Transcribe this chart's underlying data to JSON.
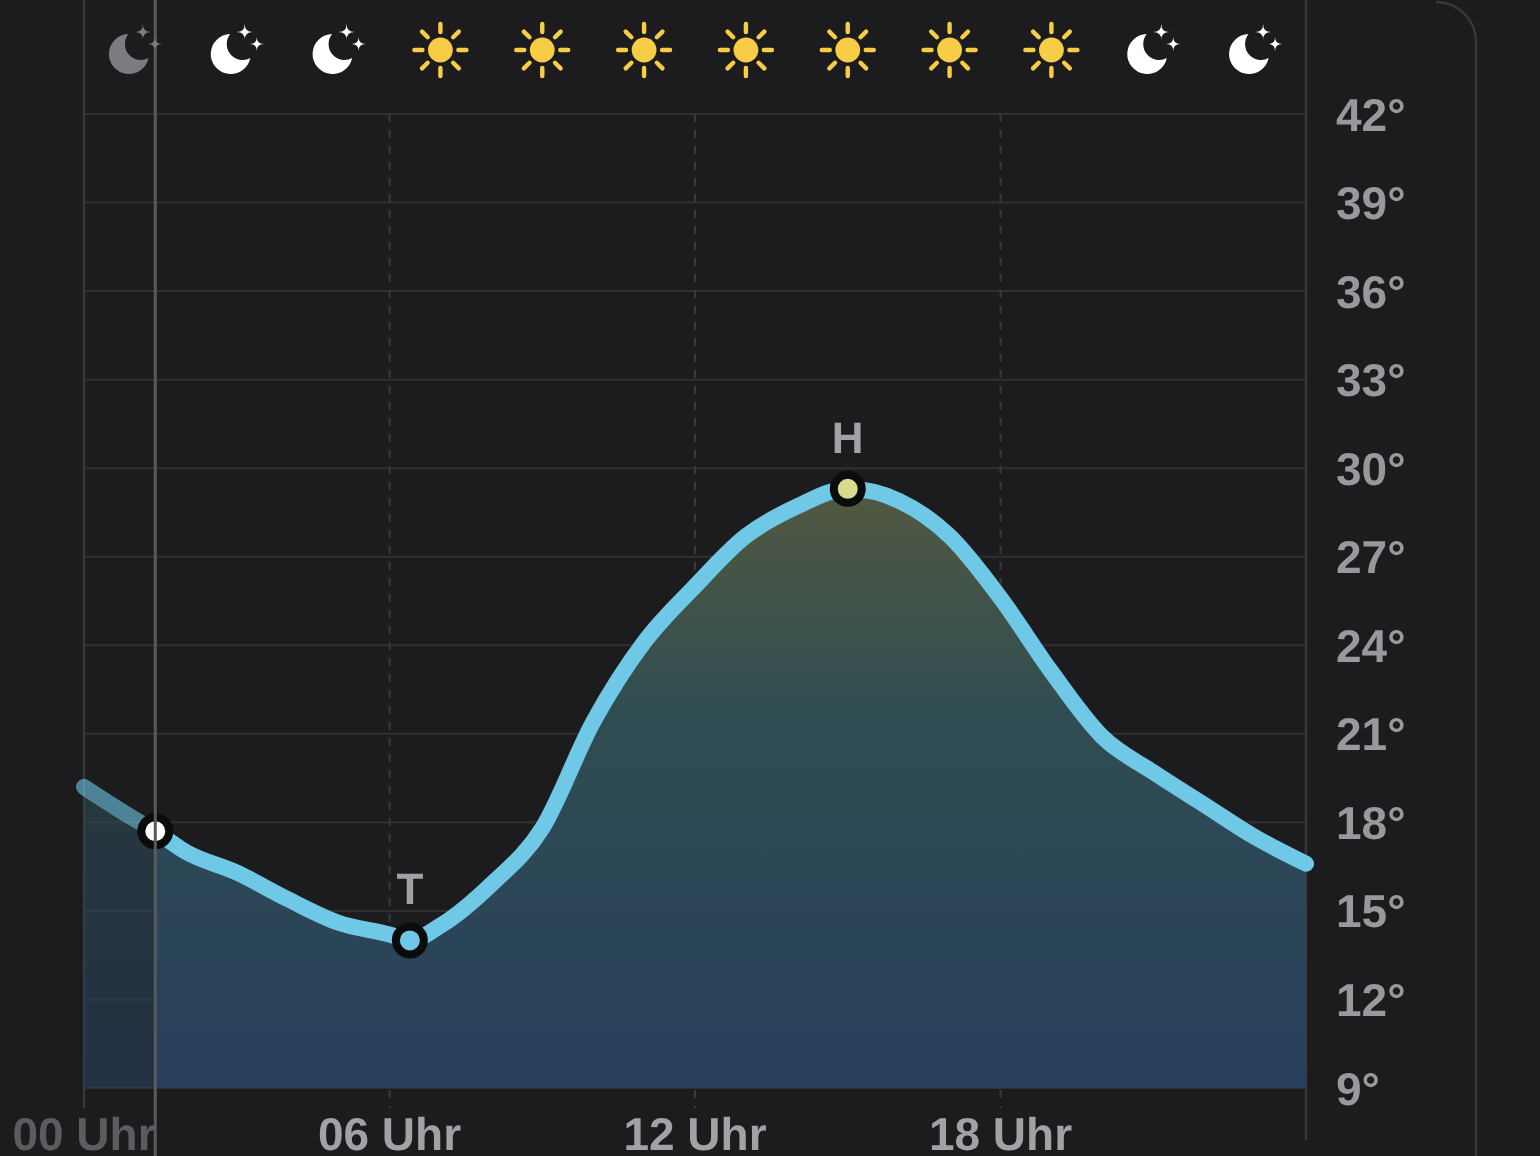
{
  "chart_data": {
    "type": "area",
    "series": [
      {
        "color": "#6ec8e6",
        "x": [
          0,
          1,
          1.4,
          2,
          3,
          4,
          5,
          6,
          6.4,
          7,
          8,
          9,
          10,
          11,
          12,
          13,
          14,
          15,
          16,
          17,
          18,
          19,
          20,
          21,
          22,
          23,
          24
        ],
        "values": [
          19.2,
          18.1,
          17.7,
          17.0,
          16.3,
          15.4,
          14.6,
          14.2,
          14.0,
          14.5,
          15.9,
          17.8,
          21.4,
          24.1,
          26.0,
          27.7,
          28.7,
          29.3,
          28.9,
          27.7,
          25.6,
          23.1,
          20.9,
          19.7,
          18.6,
          17.5,
          16.6
        ]
      },
      {
        "type": "scatter",
        "marker": "circle",
        "x": [
          1.4,
          6.4,
          15
        ],
        "values": [
          17.7,
          14.0,
          29.3
        ],
        "colors": [
          "#ffffff",
          "#6ec8e6",
          "#d6dc8a"
        ]
      }
    ],
    "xlim": [
      0,
      24
    ],
    "xticks": [
      {
        "value": 0,
        "label": "00 Uhr"
      },
      {
        "value": 6,
        "label": "06 Uhr"
      },
      {
        "value": 12,
        "label": "12 Uhr"
      },
      {
        "value": 18,
        "label": "18 Uhr"
      }
    ],
    "ylim": [
      9,
      42
    ],
    "yticks": [
      {
        "value": 9,
        "label": "9°"
      },
      {
        "value": 12,
        "label": "12°"
      },
      {
        "value": 15,
        "label": "15°"
      },
      {
        "value": 18,
        "label": "18°"
      },
      {
        "value": 21,
        "label": "21°"
      },
      {
        "value": 24,
        "label": "24°"
      },
      {
        "value": 27,
        "label": "27°"
      },
      {
        "value": 30,
        "label": "30°"
      },
      {
        "value": 33,
        "label": "33°"
      },
      {
        "value": 36,
        "label": "36°"
      },
      {
        "value": 39,
        "label": "39°"
      },
      {
        "value": 42,
        "label": "42°"
      }
    ],
    "grid": true,
    "ref_lines": [
      {
        "axis": "x",
        "value": 1.4
      }
    ],
    "annotations": [
      {
        "text": "T",
        "x": 6.4,
        "y": 14.0
      },
      {
        "text": "H",
        "x": 15,
        "y": 29.3
      }
    ]
  }
}
